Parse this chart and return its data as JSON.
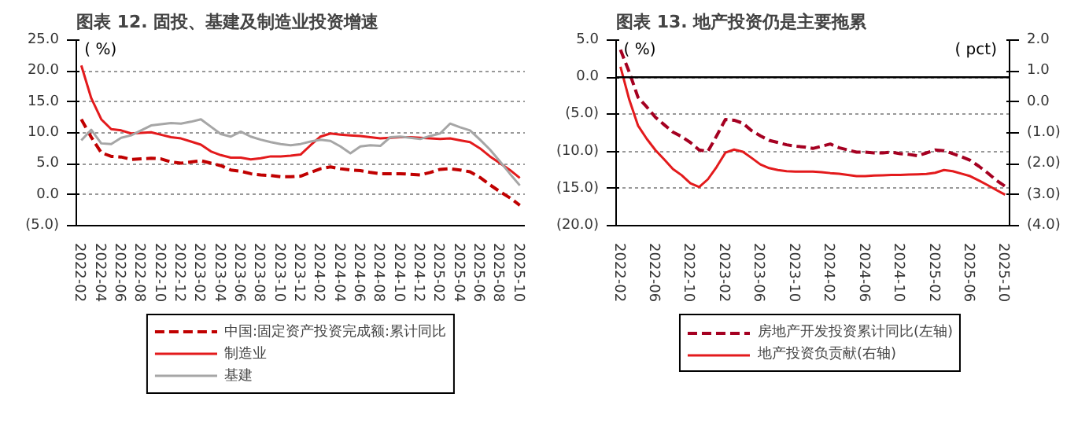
{
  "chart_data": [
    {
      "type": "line",
      "title": "图表 12. 固投、基建及制造业投资增速",
      "ylabel": "( %)",
      "grid": "y",
      "legend": "bottom",
      "categories": [
        "2022-02",
        null,
        "2022-04",
        null,
        "2022-06",
        null,
        "2022-08",
        null,
        "2022-10",
        null,
        "2022-12",
        null,
        "2023-02",
        null,
        "2023-04",
        null,
        "2023-06",
        null,
        "2023-08",
        null,
        "2023-10",
        null,
        "2023-12",
        null,
        "2024-02",
        null,
        "2024-04",
        null,
        "2024-06",
        null,
        "2024-08",
        null,
        "2024-10",
        null,
        "2024-12",
        null,
        "2025-02",
        null,
        "2025-04",
        null,
        "2025-06",
        null,
        "2025-08",
        null,
        "2025-10"
      ],
      "ylim": [
        -5,
        25
      ],
      "yticks": [
        {
          "value": 25,
          "label": "25.0"
        },
        {
          "value": 20,
          "label": "20.0"
        },
        {
          "value": 15,
          "label": "15.0"
        },
        {
          "value": 10,
          "label": "10.0"
        },
        {
          "value": 5,
          "label": "5.0"
        },
        {
          "value": 0,
          "label": "0.0"
        },
        {
          "value": -5,
          "label": "(5.0)"
        }
      ],
      "series": [
        {
          "name": "中国:固定资产投资完成额:累计同比",
          "color": "#c00000",
          "line_style": "dashed",
          "values": [
            12.2,
            9.3,
            6.8,
            6.2,
            6.1,
            5.7,
            5.8,
            5.9,
            5.8,
            5.3,
            5.1,
            5.3,
            5.5,
            5.1,
            4.7,
            4.0,
            3.8,
            3.4,
            3.2,
            3.1,
            2.9,
            2.9,
            3.0,
            3.6,
            4.2,
            4.5,
            4.2,
            4.0,
            3.9,
            3.6,
            3.4,
            3.4,
            3.4,
            3.3,
            3.2,
            3.6,
            4.1,
            4.2,
            4.0,
            3.7,
            2.8,
            1.6,
            0.5,
            -0.5,
            -1.7
          ]
        },
        {
          "name": "制造业",
          "color": "#e31a1c",
          "line_style": "solid",
          "values": [
            20.9,
            15.6,
            12.2,
            10.6,
            10.4,
            9.9,
            10.0,
            10.1,
            9.7,
            9.3,
            9.1,
            8.6,
            8.1,
            7.0,
            6.4,
            6.0,
            6.0,
            5.7,
            5.9,
            6.2,
            6.2,
            6.3,
            6.5,
            8.0,
            9.4,
            9.9,
            9.7,
            9.6,
            9.5,
            9.3,
            9.1,
            9.2,
            9.3,
            9.3,
            9.2,
            9.1,
            9.0,
            9.1,
            8.8,
            8.5,
            7.5,
            6.2,
            5.1,
            4.0,
            2.7
          ]
        },
        {
          "name": "基建",
          "color": "#a6a6a6",
          "line_style": "solid",
          "values": [
            8.8,
            10.5,
            8.3,
            8.2,
            9.2,
            9.6,
            10.4,
            11.2,
            11.4,
            11.6,
            11.5,
            11.8,
            12.2,
            11.0,
            9.8,
            9.4,
            10.2,
            9.4,
            8.9,
            8.5,
            8.2,
            8.0,
            8.2,
            8.6,
            8.9,
            8.7,
            7.8,
            6.7,
            7.8,
            8.0,
            7.9,
            9.3,
            9.4,
            9.2,
            9.0,
            9.5,
            9.9,
            11.5,
            10.9,
            10.4,
            8.9,
            7.3,
            5.4,
            3.4,
            1.5
          ]
        }
      ]
    },
    {
      "type": "line",
      "title": "图表 13. 地产投资仍是主要拖累",
      "ylabel": "( %)",
      "y2label": "( pct)",
      "grid": "y",
      "legend": "bottom",
      "categories": [
        "2022-02",
        null,
        null,
        null,
        "2022-06",
        null,
        null,
        null,
        "2022-10",
        null,
        null,
        null,
        "2023-02",
        null,
        null,
        null,
        "2023-06",
        null,
        null,
        null,
        "2023-10",
        null,
        null,
        null,
        "2024-02",
        null,
        null,
        null,
        "2024-06",
        null,
        null,
        null,
        "2024-10",
        null,
        null,
        null,
        "2025-02",
        null,
        null,
        null,
        "2025-06",
        null,
        null,
        null,
        "2025-10"
      ],
      "ylim": [
        -20,
        5
      ],
      "yticks": [
        {
          "value": 5,
          "label": "5.0"
        },
        {
          "value": 0,
          "label": "0.0"
        },
        {
          "value": -5,
          "label": "(5.0)"
        },
        {
          "value": -10,
          "label": "(10.0)"
        },
        {
          "value": -15,
          "label": "(15.0)"
        },
        {
          "value": -20,
          "label": "(20.0)"
        }
      ],
      "y2lim": [
        -4,
        2
      ],
      "y2ticks": [
        {
          "value": 2,
          "label": "2.0"
        },
        {
          "value": 1,
          "label": "1.0"
        },
        {
          "value": 0,
          "label": "0.0"
        },
        {
          "value": -1,
          "label": "(1.0)"
        },
        {
          "value": -2,
          "label": "(2.0)"
        },
        {
          "value": -3,
          "label": "(3.0)"
        },
        {
          "value": -4,
          "label": "(4.0)"
        }
      ],
      "ref_lines": [
        {
          "axis": "y",
          "value": 0,
          "color": "#000000"
        }
      ],
      "series": [
        {
          "name": "房地产开发投资累计同比(左轴)",
          "color": "#a50021",
          "line_style": "dashed",
          "values": [
            3.7,
            0.7,
            -2.7,
            -4.0,
            -5.4,
            -6.4,
            -7.4,
            -8.0,
            -8.8,
            -9.8,
            -10.0,
            -7.9,
            -5.7,
            -5.8,
            -6.2,
            -7.2,
            -7.9,
            -8.5,
            -8.8,
            -9.1,
            -9.3,
            -9.4,
            -9.6,
            -9.3,
            -9.0,
            -9.5,
            -9.8,
            -10.1,
            -10.1,
            -10.2,
            -10.2,
            -10.1,
            -10.3,
            -10.4,
            -10.6,
            -10.2,
            -9.8,
            -9.9,
            -10.3,
            -10.7,
            -11.2,
            -12.0,
            -12.9,
            -13.9,
            -14.7
          ]
        },
        {
          "name": "地产投资负贡献(右轴)",
          "color": "#e31a1c",
          "line_style": "solid",
          "axis": "y2",
          "values": [
            1.14,
            0.08,
            -0.76,
            -1.19,
            -1.56,
            -1.86,
            -2.17,
            -2.37,
            -2.63,
            -2.75,
            -2.5,
            -2.1,
            -1.64,
            -1.54,
            -1.61,
            -1.81,
            -2.02,
            -2.14,
            -2.2,
            -2.24,
            -2.25,
            -2.25,
            -2.25,
            -2.27,
            -2.3,
            -2.32,
            -2.36,
            -2.4,
            -2.4,
            -2.38,
            -2.37,
            -2.36,
            -2.36,
            -2.35,
            -2.34,
            -2.33,
            -2.29,
            -2.2,
            -2.24,
            -2.32,
            -2.4,
            -2.54,
            -2.69,
            -2.85,
            -3.0
          ]
        }
      ]
    }
  ]
}
